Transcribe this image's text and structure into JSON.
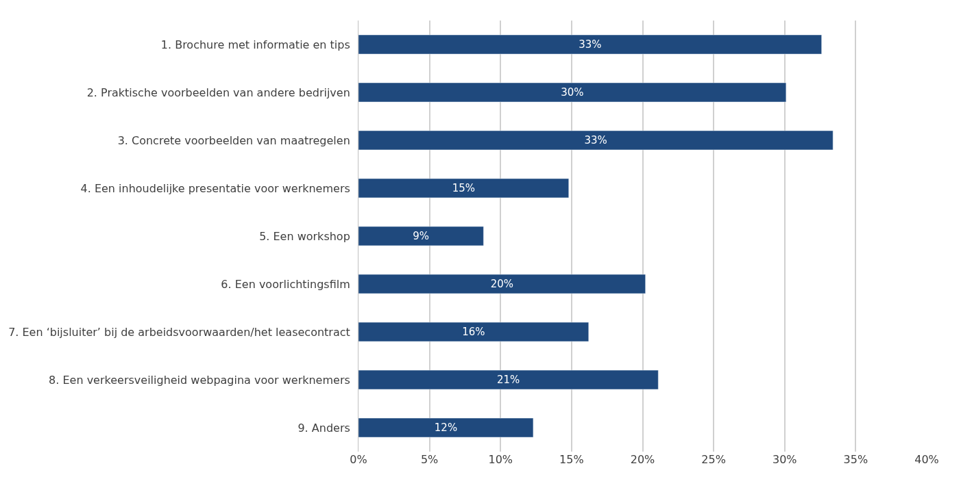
{
  "chart_data": {
    "type": "bar",
    "orientation": "horizontal",
    "categories": [
      "1. Brochure met informatie en tips",
      "2. Praktische voorbeelden van andere bedrijven",
      "3. Concrete voorbeelden van maatregelen",
      "4. Een inhoudelijke presentatie voor werknemers",
      "5. Een workshop",
      "6. Een voorlichtingsfilm",
      "7. Een ‘bijsluiter’ bij de arbeidsvoorwaarden/het leasecontract",
      "8. Een verkeersveiligheid webpagina voor werknemers",
      "9. Anders"
    ],
    "values": [
      32.6,
      30.1,
      33.4,
      14.8,
      8.8,
      20.2,
      16.2,
      21.1,
      12.3
    ],
    "value_labels": [
      "33%",
      "30%",
      "33%",
      "15%",
      "9%",
      "20%",
      "16%",
      "21%",
      "12%"
    ],
    "color": "#1f497d",
    "xlim": [
      0,
      40
    ],
    "xticks": [
      {
        "value": 0,
        "label": "0%"
      },
      {
        "value": 5,
        "label": "5%"
      },
      {
        "value": 10,
        "label": "10%"
      },
      {
        "value": 15,
        "label": "15%"
      },
      {
        "value": 20,
        "label": "20%"
      },
      {
        "value": 25,
        "label": "25%"
      },
      {
        "value": 30,
        "label": "30%"
      },
      {
        "value": 35,
        "label": "35%"
      },
      {
        "value": 40,
        "label": "40%"
      }
    ],
    "grid": "x"
  }
}
